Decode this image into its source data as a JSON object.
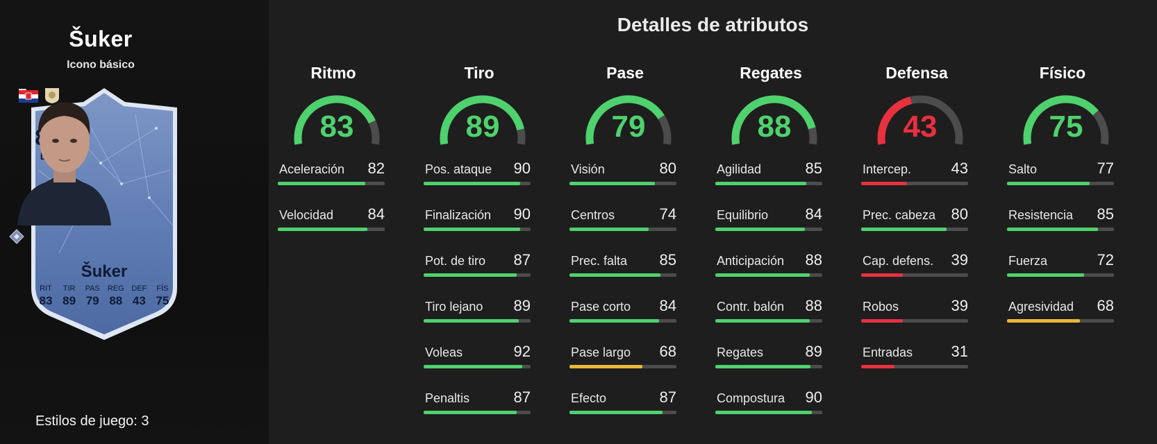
{
  "player": {
    "name": "Šuker",
    "subtitle": "Icono básico",
    "card": {
      "rating": "87",
      "position": "DC",
      "name": "Šuker",
      "stats": [
        {
          "label": "RIT",
          "value": "83"
        },
        {
          "label": "TIR",
          "value": "89"
        },
        {
          "label": "PAS",
          "value": "79"
        },
        {
          "label": "REG",
          "value": "88"
        },
        {
          "label": "DEF",
          "value": "43"
        },
        {
          "label": "FÍS",
          "value": "75"
        }
      ]
    },
    "playstyles": "Estilos de juego: 3"
  },
  "panel_title": "Detalles de atributos",
  "colors": {
    "high": "#4fd16d",
    "mid": "#e9b839",
    "low": "#e8303f",
    "track": "#4c4c4c"
  },
  "categories": [
    {
      "name": "Ritmo",
      "value": 83,
      "attributes": [
        {
          "label": "Aceleración",
          "value": 82
        },
        {
          "label": "Velocidad",
          "value": 84
        }
      ]
    },
    {
      "name": "Tiro",
      "value": 89,
      "attributes": [
        {
          "label": "Pos. ataque",
          "value": 90
        },
        {
          "label": "Finalización",
          "value": 90
        },
        {
          "label": "Pot. de tiro",
          "value": 87
        },
        {
          "label": "Tiro lejano",
          "value": 89
        },
        {
          "label": "Voleas",
          "value": 92
        },
        {
          "label": "Penaltis",
          "value": 87
        }
      ]
    },
    {
      "name": "Pase",
      "value": 79,
      "attributes": [
        {
          "label": "Visión",
          "value": 80
        },
        {
          "label": "Centros",
          "value": 74
        },
        {
          "label": "Prec. falta",
          "value": 85
        },
        {
          "label": "Pase corto",
          "value": 84
        },
        {
          "label": "Pase largo",
          "value": 68
        },
        {
          "label": "Efecto",
          "value": 87
        }
      ]
    },
    {
      "name": "Regates",
      "value": 88,
      "attributes": [
        {
          "label": "Agilidad",
          "value": 85
        },
        {
          "label": "Equilibrio",
          "value": 84
        },
        {
          "label": "Anticipación",
          "value": 88
        },
        {
          "label": "Contr. balón",
          "value": 88
        },
        {
          "label": "Regates",
          "value": 89
        },
        {
          "label": "Compostura",
          "value": 90
        }
      ]
    },
    {
      "name": "Defensa",
      "value": 43,
      "attributes": [
        {
          "label": "Intercep.",
          "value": 43
        },
        {
          "label": "Prec. cabeza",
          "value": 80
        },
        {
          "label": "Cap. defens.",
          "value": 39
        },
        {
          "label": "Robos",
          "value": 39
        },
        {
          "label": "Entradas",
          "value": 31
        }
      ]
    },
    {
      "name": "Físico",
      "value": 75,
      "attributes": [
        {
          "label": "Salto",
          "value": 77
        },
        {
          "label": "Resistencia",
          "value": 85
        },
        {
          "label": "Fuerza",
          "value": 72
        },
        {
          "label": "Agresividad",
          "value": 68
        }
      ]
    }
  ]
}
